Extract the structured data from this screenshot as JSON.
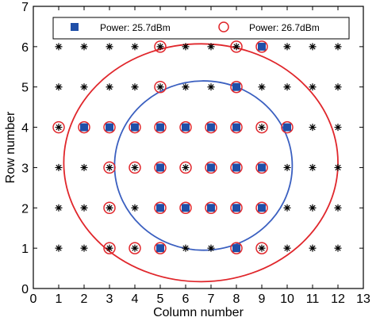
{
  "chart_data": {
    "type": "scatter",
    "title": "",
    "xlabel": "Column number",
    "ylabel": "Row number",
    "xlim": [
      0,
      13
    ],
    "ylim": [
      0,
      7
    ],
    "xticks": [
      0,
      1,
      2,
      3,
      4,
      5,
      6,
      7,
      8,
      9,
      10,
      11,
      12,
      13
    ],
    "yticks": [
      0,
      1,
      2,
      3,
      4,
      5,
      6,
      7
    ],
    "grid": false,
    "legend_position": "top",
    "grid_points": {
      "columns": [
        1,
        2,
        3,
        4,
        5,
        6,
        7,
        8,
        9,
        10,
        11,
        12
      ],
      "rows": [
        1,
        2,
        3,
        4,
        5,
        6
      ],
      "marker": "asterisk",
      "color": "#000000"
    },
    "series": [
      {
        "name": "Power: 25.7dBm",
        "marker": "filled-square",
        "color": "#1f4fa8",
        "points": [
          [
            9,
            6
          ],
          [
            8,
            5
          ],
          [
            2,
            4
          ],
          [
            3,
            4
          ],
          [
            4,
            4
          ],
          [
            5,
            4
          ],
          [
            6,
            4
          ],
          [
            7,
            4
          ],
          [
            8,
            4
          ],
          [
            10,
            4
          ],
          [
            5,
            3
          ],
          [
            7,
            3
          ],
          [
            8,
            3
          ],
          [
            9,
            3
          ],
          [
            5,
            2
          ],
          [
            6,
            2
          ],
          [
            7,
            2
          ],
          [
            8,
            2
          ],
          [
            9,
            2
          ],
          [
            5,
            1
          ],
          [
            8,
            1
          ]
        ]
      },
      {
        "name": "Power: 26.7dBm",
        "marker": "open-circle",
        "color": "#e0262b",
        "points": [
          [
            5,
            6
          ],
          [
            8,
            6
          ],
          [
            9,
            6
          ],
          [
            5,
            5
          ],
          [
            8,
            5
          ],
          [
            1,
            4
          ],
          [
            2,
            4
          ],
          [
            3,
            4
          ],
          [
            4,
            4
          ],
          [
            5,
            4
          ],
          [
            6,
            4
          ],
          [
            7,
            4
          ],
          [
            8,
            4
          ],
          [
            9,
            4
          ],
          [
            10,
            4
          ],
          [
            3,
            3
          ],
          [
            4,
            3
          ],
          [
            5,
            3
          ],
          [
            6,
            3
          ],
          [
            7,
            3
          ],
          [
            8,
            3
          ],
          [
            9,
            3
          ],
          [
            3,
            2
          ],
          [
            5,
            2
          ],
          [
            6,
            2
          ],
          [
            7,
            2
          ],
          [
            8,
            2
          ],
          [
            9,
            2
          ],
          [
            3,
            1
          ],
          [
            4,
            1
          ],
          [
            5,
            1
          ],
          [
            8,
            1
          ],
          [
            9,
            1
          ]
        ]
      }
    ],
    "boundaries": [
      {
        "series": "Power: 25.7dBm",
        "shape": "ellipse",
        "cx": 6.7,
        "cy": 3.05,
        "rx": 3.5,
        "ry": 2.1,
        "color": "#3a5fc0"
      },
      {
        "series": "Power: 26.7dBm",
        "shape": "ellipse",
        "cx": 6.6,
        "cy": 3.12,
        "rx": 5.4,
        "ry": 2.95,
        "color": "#e0262b"
      }
    ]
  }
}
